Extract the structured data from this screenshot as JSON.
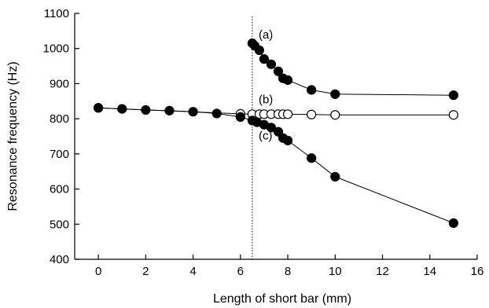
{
  "chart_data": {
    "type": "scatter",
    "title": "",
    "xlabel": "Length of short bar (mm)",
    "ylabel": "Resonance frequency (Hz)",
    "xlim": [
      -1,
      16
    ],
    "ylim": [
      400,
      1100
    ],
    "xticks": [
      0,
      2,
      4,
      6,
      8,
      10,
      12,
      14,
      16
    ],
    "yticks": [
      400,
      500,
      600,
      700,
      800,
      900,
      1000,
      1100
    ],
    "xtick_labels": [
      "0",
      "2",
      "4",
      "6",
      "8",
      "10",
      "12",
      "14",
      "16"
    ],
    "ytick_labels": [
      "400",
      "500",
      "600",
      "700",
      "800",
      "900",
      "1000",
      "1100"
    ],
    "grid": false,
    "vline": {
      "x": 6.5,
      "style": "dotted"
    },
    "series": [
      {
        "marker": "filled",
        "x": [
          0,
          1,
          2,
          3,
          4,
          5,
          6,
          6.5,
          6.7,
          7,
          7.3,
          7.6,
          7.8,
          8,
          9,
          10,
          15
        ],
        "y": [
          831,
          828,
          825,
          823,
          820,
          815,
          805,
          795,
          790,
          783,
          775,
          763,
          745,
          738,
          688,
          635,
          503
        ]
      },
      {
        "marker": "filled",
        "x": [
          6.5,
          6.6,
          6.8,
          7,
          7.3,
          7.6,
          7.8,
          8,
          9,
          10,
          15
        ],
        "y": [
          1015,
          1008,
          995,
          970,
          955,
          935,
          915,
          910,
          882,
          870,
          867
        ]
      },
      {
        "marker": "open",
        "x": [
          0,
          6,
          6.5,
          6.8,
          7,
          7.3,
          7.6,
          7.8,
          8,
          9,
          10,
          15
        ],
        "y": [
          831,
          814,
          813,
          813,
          813,
          813,
          813,
          813,
          813,
          812,
          811,
          811
        ]
      }
    ],
    "annotations": [
      {
        "text": "(a)",
        "x": 7.2,
        "y": 1040
      },
      {
        "text": "(b)",
        "x": 7.2,
        "y": 855
      },
      {
        "text": "(c)",
        "x": 7.2,
        "y": 752
      }
    ]
  }
}
